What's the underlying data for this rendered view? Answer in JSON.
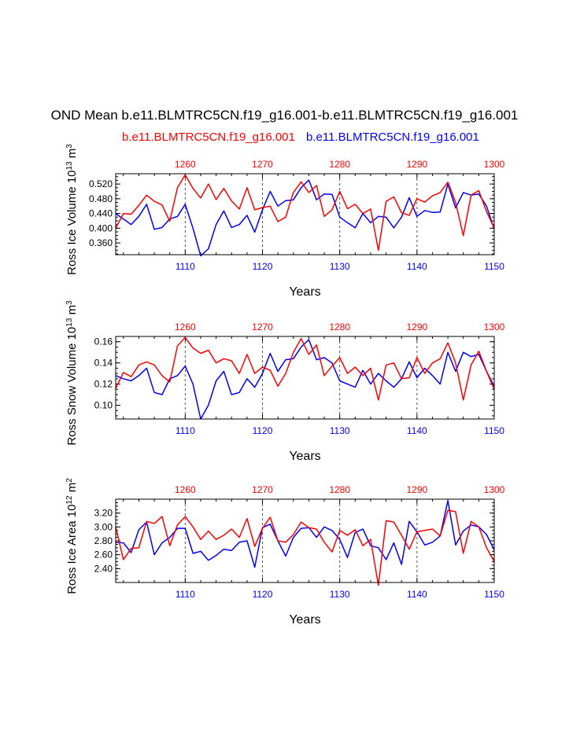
{
  "title": "OND Mean b.e11.BLMTRC5CN.f19_g16.001-b.e11.BLMTRC5CN.f19_g16.001",
  "legend": [
    {
      "label": "b.e11.BLMTRC5CN.f19_g16.001",
      "color": "#ff0000"
    },
    {
      "label": "b.e11.BLMTRC5CN.f19_g16.001",
      "color": "#0000ff"
    }
  ],
  "colors": {
    "series_a": "#0000ff",
    "series_b": "#ff0000"
  },
  "chart_data": [
    {
      "type": "line",
      "ylabel": "Ross Ice Volume 10^13 m^3",
      "ylabel_main": "Ross Ice Volume 10",
      "ylabel_exp": "13",
      "ylabel_unit": "m",
      "ylabel_unit_exp": "3",
      "xlabel": "Years",
      "xlim": [
        1101,
        1150
      ],
      "ylim": [
        0.328,
        0.548
      ],
      "yticks": [
        0.36,
        0.4,
        0.44,
        0.48,
        0.52
      ],
      "yticklabels": [
        "0.360",
        "0.400",
        "0.440",
        "0.480",
        "0.520"
      ],
      "bottom_ticks": [
        1110,
        1120,
        1130,
        1140,
        1150
      ],
      "top_ticks": [
        1260,
        1270,
        1280,
        1290,
        1300
      ],
      "grid": "dashed vertical at labeled ticks",
      "series": [
        {
          "color": "#0000ff",
          "x_start": 1101,
          "values": [
            0.44,
            0.425,
            0.41,
            0.432,
            0.465,
            0.397,
            0.402,
            0.425,
            0.432,
            0.465,
            0.4,
            0.325,
            0.344,
            0.41,
            0.447,
            0.402,
            0.41,
            0.435,
            0.389,
            0.45,
            0.5,
            0.46,
            0.475,
            0.477,
            0.51,
            0.531,
            0.477,
            0.493,
            0.492,
            0.43,
            0.415,
            0.401,
            0.44,
            0.415,
            0.432,
            0.43,
            0.401,
            0.43,
            0.483,
            0.432,
            0.448,
            0.443,
            0.444,
            0.52,
            0.455,
            0.497,
            0.49,
            0.493,
            0.46,
            0.397
          ]
        },
        {
          "color": "#ff0000",
          "x_start": 1101,
          "values": [
            0.4,
            0.44,
            0.438,
            0.462,
            0.49,
            0.473,
            0.463,
            0.419,
            0.51,
            0.545,
            0.508,
            0.482,
            0.52,
            0.478,
            0.508,
            0.474,
            0.452,
            0.51,
            0.45,
            0.456,
            0.46,
            0.418,
            0.43,
            0.497,
            0.526,
            0.497,
            0.516,
            0.432,
            0.45,
            0.5,
            0.453,
            0.465,
            0.44,
            0.452,
            0.34,
            0.473,
            0.485,
            0.442,
            0.435,
            0.48,
            0.471,
            0.488,
            0.497,
            0.525,
            0.47,
            0.38,
            0.49,
            0.502,
            0.445,
            0.4
          ]
        }
      ]
    },
    {
      "type": "line",
      "ylabel": "Ross Snow Volume 10^13 m^3",
      "ylabel_main": "Ross Snow Volume 10",
      "ylabel_exp": "13",
      "ylabel_unit": "m",
      "ylabel_unit_exp": "3",
      "xlabel": "Years",
      "xlim": [
        1101,
        1150
      ],
      "ylim": [
        0.087,
        0.165
      ],
      "yticks": [
        0.1,
        0.12,
        0.14,
        0.16
      ],
      "yticklabels": [
        "0.10",
        "0.12",
        "0.14",
        "0.16"
      ],
      "bottom_ticks": [
        1110,
        1120,
        1130,
        1140,
        1150
      ],
      "top_ticks": [
        1260,
        1270,
        1280,
        1290,
        1300
      ],
      "grid": "dashed vertical at labeled ticks",
      "series": [
        {
          "color": "#0000ff",
          "x_start": 1101,
          "values": [
            0.128,
            0.125,
            0.123,
            0.128,
            0.135,
            0.112,
            0.11,
            0.125,
            0.128,
            0.137,
            0.12,
            0.087,
            0.1,
            0.123,
            0.132,
            0.11,
            0.112,
            0.125,
            0.117,
            0.13,
            0.149,
            0.132,
            0.143,
            0.144,
            0.155,
            0.162,
            0.143,
            0.145,
            0.14,
            0.123,
            0.12,
            0.117,
            0.133,
            0.12,
            0.13,
            0.123,
            0.117,
            0.125,
            0.141,
            0.126,
            0.135,
            0.128,
            0.12,
            0.15,
            0.132,
            0.15,
            0.146,
            0.148,
            0.132,
            0.118
          ]
        },
        {
          "color": "#ff0000",
          "x_start": 1101,
          "values": [
            0.116,
            0.131,
            0.127,
            0.138,
            0.141,
            0.138,
            0.128,
            0.122,
            0.156,
            0.164,
            0.154,
            0.149,
            0.152,
            0.14,
            0.144,
            0.142,
            0.13,
            0.148,
            0.13,
            0.136,
            0.133,
            0.118,
            0.13,
            0.15,
            0.163,
            0.148,
            0.157,
            0.128,
            0.137,
            0.145,
            0.13,
            0.136,
            0.128,
            0.135,
            0.105,
            0.138,
            0.14,
            0.125,
            0.126,
            0.145,
            0.13,
            0.14,
            0.144,
            0.159,
            0.14,
            0.105,
            0.138,
            0.151,
            0.132,
            0.115
          ]
        }
      ]
    },
    {
      "type": "line",
      "ylabel": "Ross Ice Area 10^12 m^2",
      "ylabel_main": "Ross Ice Area 10",
      "ylabel_exp": "12",
      "ylabel_unit": "m",
      "ylabel_unit_exp": "2",
      "xlabel": "Years",
      "xlim": [
        1101,
        1150
      ],
      "ylim": [
        2.2,
        3.4
      ],
      "yticks": [
        2.4,
        2.6,
        2.8,
        3.0,
        3.2
      ],
      "yticklabels": [
        "2.40",
        "2.60",
        "2.80",
        "3.00",
        "3.20"
      ],
      "bottom_ticks": [
        1110,
        1120,
        1130,
        1140,
        1150
      ],
      "top_ticks": [
        1260,
        1270,
        1280,
        1290,
        1300
      ],
      "grid": "dashed vertical at labeled ticks",
      "series": [
        {
          "color": "#0000ff",
          "x_start": 1101,
          "values": [
            2.78,
            2.77,
            2.63,
            2.96,
            3.07,
            2.6,
            2.77,
            2.85,
            2.98,
            2.98,
            2.62,
            2.65,
            2.52,
            2.59,
            2.68,
            2.66,
            2.78,
            2.8,
            2.42,
            2.99,
            3.04,
            2.8,
            2.58,
            2.85,
            2.98,
            2.99,
            2.85,
            3.0,
            2.95,
            2.82,
            2.56,
            2.92,
            2.97,
            2.73,
            2.7,
            2.53,
            2.77,
            2.46,
            3.08,
            2.93,
            2.74,
            2.78,
            2.87,
            3.38,
            2.74,
            2.94,
            3.03,
            3.0,
            2.89,
            2.67
          ]
        },
        {
          "color": "#ff0000",
          "x_start": 1101,
          "values": [
            3.0,
            2.53,
            2.69,
            2.7,
            3.08,
            3.05,
            3.15,
            2.73,
            3.03,
            3.15,
            3.0,
            2.82,
            2.94,
            2.82,
            2.88,
            2.97,
            2.85,
            3.12,
            2.72,
            2.98,
            3.14,
            2.8,
            2.78,
            2.89,
            3.07,
            2.99,
            2.97,
            2.78,
            2.64,
            2.95,
            2.88,
            2.96,
            2.73,
            2.82,
            2.16,
            3.09,
            3.07,
            2.88,
            2.68,
            2.93,
            2.95,
            2.97,
            2.87,
            3.24,
            3.22,
            2.62,
            3.08,
            3.0,
            2.7,
            2.5
          ]
        }
      ]
    }
  ]
}
